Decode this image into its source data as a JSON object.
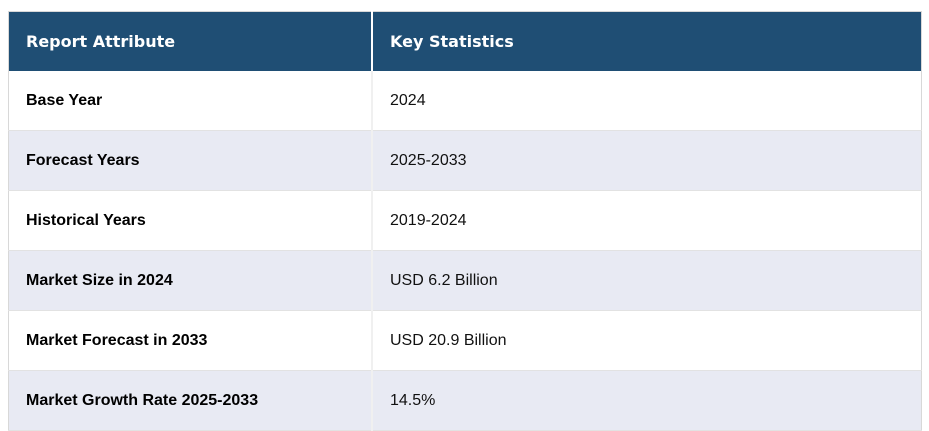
{
  "table": {
    "columns": [
      {
        "label": "Report Attribute"
      },
      {
        "label": "Key Statistics"
      }
    ],
    "rows": [
      {
        "attribute": "Base Year",
        "value": "2024"
      },
      {
        "attribute": "Forecast Years",
        "value": "2025-2033"
      },
      {
        "attribute": "Historical Years",
        "value": "2019-2024"
      },
      {
        "attribute": "Market Size in 2024",
        "value": "USD 6.2 Billion"
      },
      {
        "attribute": "Market Forecast in 2033",
        "value": "USD 20.9 Billion"
      },
      {
        "attribute": "Market Growth Rate 2025-2033",
        "value": "14.5%"
      }
    ]
  },
  "colors": {
    "header_bg": "#1F4E74",
    "row_alt_bg": "#E8EAF3",
    "border": "#D8D8D8"
  }
}
